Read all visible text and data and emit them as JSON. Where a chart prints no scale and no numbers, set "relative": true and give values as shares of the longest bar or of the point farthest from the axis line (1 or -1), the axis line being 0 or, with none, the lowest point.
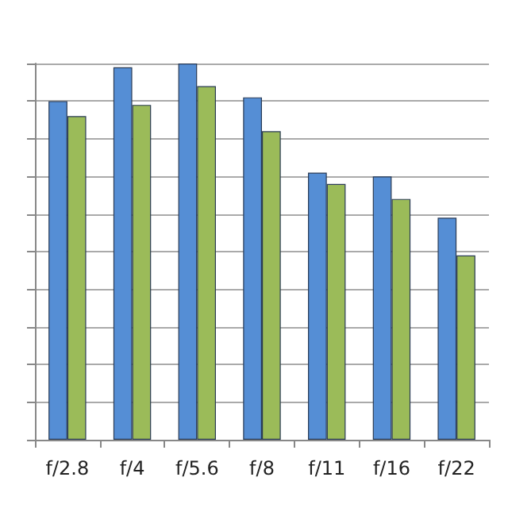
{
  "chart_data": {
    "type": "bar",
    "relative": true,
    "categories": [
      "f/2.8",
      "f/4",
      "f/5.6",
      "f/8",
      "f/11",
      "f/16",
      "f/22"
    ],
    "series": [
      {
        "color": "#558ed5",
        "values": [
          0.9,
          0.99,
          1,
          0.91,
          0.71,
          0.7,
          0.59
        ]
      },
      {
        "color": "#9bbb59",
        "values": [
          0.86,
          0.89,
          0.94,
          0.82,
          0.68,
          0.64,
          0.49
        ]
      }
    ],
    "grid": "y"
  }
}
